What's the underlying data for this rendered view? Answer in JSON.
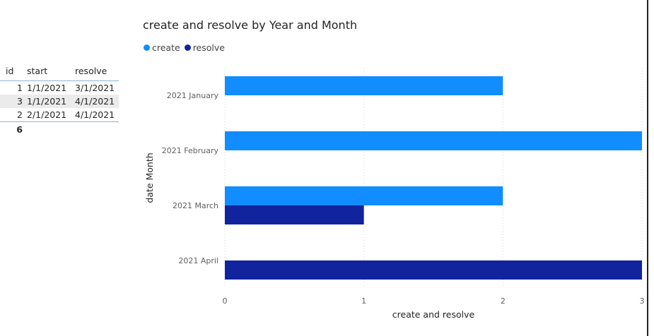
{
  "table": {
    "headers": [
      "id",
      "start",
      "resolve"
    ],
    "rows": [
      {
        "id": "1",
        "start": "1/1/2021",
        "resolve": "3/1/2021",
        "selected": false
      },
      {
        "id": "3",
        "start": "1/1/2021",
        "resolve": "4/1/2021",
        "selected": true
      },
      {
        "id": "2",
        "start": "2/1/2021",
        "resolve": "4/1/2021",
        "selected": false
      }
    ],
    "total": "6"
  },
  "chart_data": {
    "type": "bar",
    "orientation": "horizontal",
    "title": "create and resolve by Year and Month",
    "categories": [
      "2021 January",
      "2021 February",
      "2021 March",
      "2021 April"
    ],
    "series": [
      {
        "name": "create",
        "color": "#118DFF",
        "values": [
          2,
          3,
          2,
          0
        ]
      },
      {
        "name": "resolve",
        "color": "#12239E",
        "values": [
          0,
          0,
          1,
          3
        ]
      }
    ],
    "xlabel": "create and resolve",
    "ylabel": "date Month",
    "xlim": [
      0,
      3
    ],
    "xticks": [
      0,
      1,
      2,
      3
    ],
    "grid": true,
    "legend": "top-left"
  }
}
